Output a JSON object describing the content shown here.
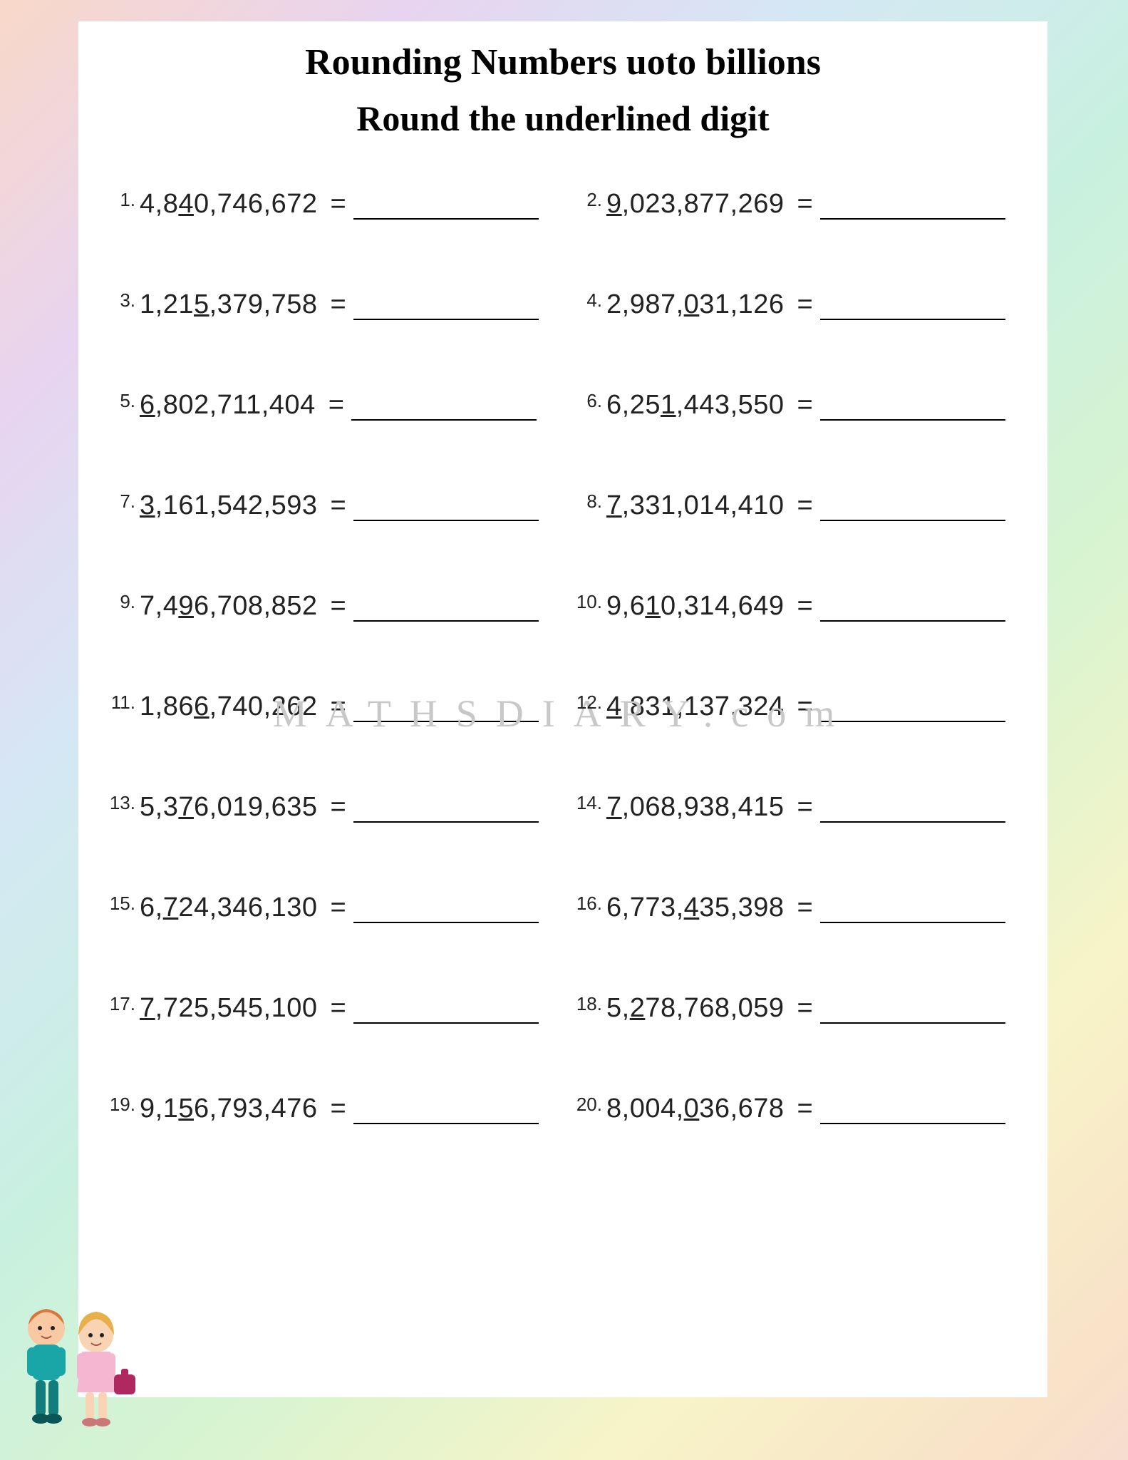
{
  "title": "Rounding Numbers uoto billions",
  "subtitle": "Round the underlined digit",
  "watermark": "MATHSDIARY.com",
  "blank_width": 260,
  "problems": [
    {
      "n": "1.",
      "pre": "4,8",
      "u": "4",
      "post": "0,746,672"
    },
    {
      "n": "2.",
      "pre": "",
      "u": "9",
      "post": ",023,877,269"
    },
    {
      "n": "3.",
      "pre": "1,21",
      "u": "5",
      "post": ",379,758"
    },
    {
      "n": "4.",
      "pre": "2,987,",
      "u": "0",
      "post": "31,126"
    },
    {
      "n": "5.",
      "pre": "",
      "u": "6",
      "post": ",802,711,404"
    },
    {
      "n": "6.",
      "pre": "6,25",
      "u": "1",
      "post": ",443,550"
    },
    {
      "n": "7.",
      "pre": "",
      "u": "3",
      "post": ",161,542,593"
    },
    {
      "n": "8.",
      "pre": "",
      "u": "7",
      "post": ",331,014,410"
    },
    {
      "n": "9.",
      "pre": "7,4",
      "u": "9",
      "post": "6,708,852"
    },
    {
      "n": "10.",
      "pre": "9,6",
      "u": "1",
      "post": "0,314,649"
    },
    {
      "n": "11.",
      "pre": "1,86",
      "u": "6",
      "post": ",740,262"
    },
    {
      "n": "12.",
      "pre": "",
      "u": "4",
      "post": ",831,137,324"
    },
    {
      "n": "13.",
      "pre": "5,3",
      "u": "7",
      "post": "6,019,635"
    },
    {
      "n": "14.",
      "pre": "",
      "u": "7",
      "post": ",068,938,415"
    },
    {
      "n": "15.",
      "pre": "6,",
      "u": "7",
      "post": "24,346,130"
    },
    {
      "n": "16.",
      "pre": "6,773,",
      "u": "4",
      "post": "35,398"
    },
    {
      "n": "17.",
      "pre": "",
      "u": "7",
      "post": ",725,545,100"
    },
    {
      "n": "18.",
      "pre": "5,",
      "u": "2",
      "post": "78,768,059"
    },
    {
      "n": "19.",
      "pre": "9,1",
      "u": "5",
      "post": "6,793,476"
    },
    {
      "n": "20.",
      "pre": "8,004,",
      "u": "0",
      "post": "36,678"
    }
  ]
}
